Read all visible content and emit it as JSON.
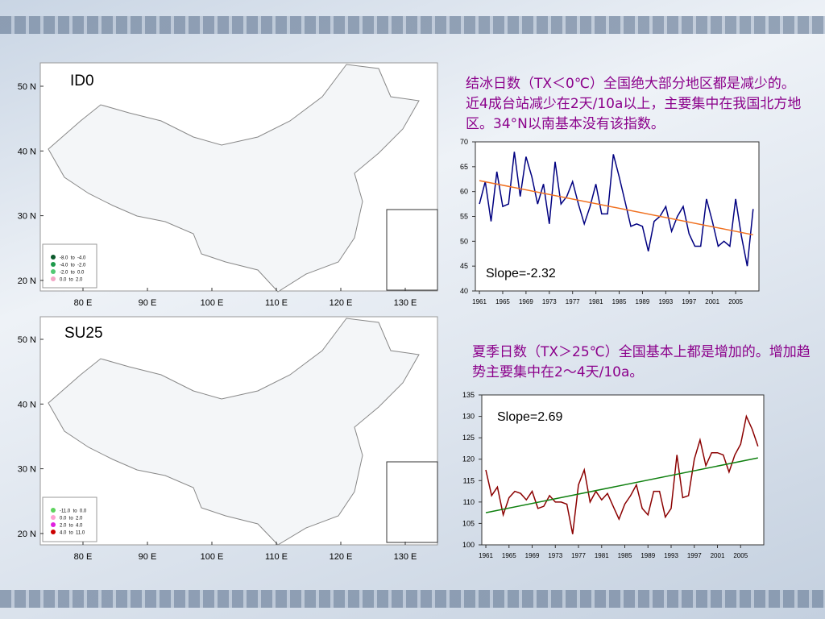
{
  "slide": {
    "text1": "结冰日数（TX＜0℃）全国绝大部分地区都是减少的。近4成台站减少在2天/10a以上，主要集中在我国北方地区。34°N以南基本没有该指数。",
    "text2": "夏季日数（TX＞25℃）全国基本上都是增加的。增加趋势主要集中在2～4天/10a。"
  },
  "maps": [
    {
      "label": "ID0",
      "lat_ticks": [
        {
          "value": 50,
          "label": "50 N"
        },
        {
          "value": 40,
          "label": "40 N"
        },
        {
          "value": 30,
          "label": "30 N"
        },
        {
          "value": 20,
          "label": "20 N"
        }
      ],
      "lon_ticks": [
        {
          "value": 80,
          "label": "80 E"
        },
        {
          "value": 90,
          "label": "90 E"
        },
        {
          "value": 100,
          "label": "100 E"
        },
        {
          "value": 110,
          "label": "110 E"
        },
        {
          "value": 120,
          "label": "120 E"
        },
        {
          "value": 130,
          "label": "130 E"
        }
      ],
      "legend": [
        {
          "label": "-8.0  to  -4.0",
          "color": "#0b5a2c"
        },
        {
          "label": "-4.0  to  -2.0",
          "color": "#1e9a4c"
        },
        {
          "label": "-2.0  to  0.0",
          "color": "#52c974"
        },
        {
          "label": "0.0  to  2.0",
          "color": "#f2a6c6"
        }
      ]
    },
    {
      "label": "SU25",
      "lat_ticks": [
        {
          "value": 50,
          "label": "50 N"
        },
        {
          "value": 40,
          "label": "40 N"
        },
        {
          "value": 30,
          "label": "30 N"
        },
        {
          "value": 20,
          "label": "20 N"
        }
      ],
      "lon_ticks": [
        {
          "value": 80,
          "label": "80 E"
        },
        {
          "value": 90,
          "label": "90 E"
        },
        {
          "value": 100,
          "label": "100 E"
        },
        {
          "value": 110,
          "label": "110 E"
        },
        {
          "value": 120,
          "label": "120 E"
        },
        {
          "value": 130,
          "label": "130 E"
        }
      ],
      "legend": [
        {
          "label": "-11.0  to  0.0",
          "color": "#5ed35e"
        },
        {
          "label": "0.0  to  2.0",
          "color": "#ffa0d2"
        },
        {
          "label": "2.0  to  4.0",
          "color": "#e020e0"
        },
        {
          "label": "4.0  to  11.0",
          "color": "#cc0000"
        }
      ]
    }
  ],
  "chart_data": [
    {
      "type": "line",
      "x": [
        1961,
        1962,
        1963,
        1964,
        1965,
        1966,
        1967,
        1968,
        1969,
        1970,
        1971,
        1972,
        1973,
        1974,
        1975,
        1976,
        1977,
        1978,
        1979,
        1980,
        1981,
        1982,
        1983,
        1984,
        1985,
        1986,
        1987,
        1988,
        1989,
        1990,
        1991,
        1992,
        1993,
        1994,
        1995,
        1996,
        1997,
        1998,
        1999,
        2000,
        2001,
        2002,
        2003,
        2004,
        2005,
        2006,
        2007,
        2008
      ],
      "series": [
        {
          "color": "#000080",
          "values": [
            57.5,
            62,
            54,
            64,
            57,
            57.5,
            68,
            59,
            67,
            63,
            57.5,
            61.5,
            53.5,
            66,
            57.5,
            59,
            62,
            57.5,
            53.5,
            57,
            61.5,
            55.5,
            55.5,
            67.5,
            63,
            58,
            53,
            53.5,
            53,
            48,
            54,
            55,
            57,
            52,
            55,
            57,
            51.5,
            49,
            49,
            58.5,
            54,
            49,
            50,
            49,
            58.5,
            51,
            45,
            56.5
          ]
        }
      ],
      "trend": {
        "color": "#f07020",
        "x": [
          1961,
          2008
        ],
        "values": [
          62.2,
          51.3
        ]
      },
      "annotation": "Slope=-2.32",
      "xlim": [
        1960.3,
        2009
      ],
      "ylim": [
        40,
        70
      ],
      "xticks": [
        1961,
        1965,
        1969,
        1973,
        1977,
        1981,
        1985,
        1989,
        1993,
        1997,
        2001,
        2005
      ],
      "yticks": [
        40,
        45,
        50,
        55,
        60,
        65,
        70
      ]
    },
    {
      "type": "line",
      "x": [
        1961,
        1962,
        1963,
        1964,
        1965,
        1966,
        1967,
        1968,
        1969,
        1970,
        1971,
        1972,
        1973,
        1974,
        1975,
        1976,
        1977,
        1978,
        1979,
        1980,
        1981,
        1982,
        1983,
        1984,
        1985,
        1986,
        1987,
        1988,
        1989,
        1990,
        1991,
        1992,
        1993,
        1994,
        1995,
        1996,
        1997,
        1998,
        1999,
        2000,
        2001,
        2002,
        2003,
        2004,
        2005,
        2006,
        2007,
        2008
      ],
      "series": [
        {
          "color": "#8b0000",
          "values": [
            117.5,
            111.5,
            113.5,
            107,
            111,
            112.5,
            112,
            110.5,
            112.5,
            108.5,
            109,
            111.5,
            110,
            110,
            109.5,
            102.5,
            114,
            117.5,
            110,
            112.5,
            110.5,
            112,
            109,
            106,
            109.5,
            111.5,
            114,
            108.5,
            107,
            112.5,
            112.5,
            106.5,
            108.5,
            121,
            111,
            111.5,
            120,
            124.5,
            118.5,
            121.5,
            121.5,
            121,
            117,
            121,
            123.5,
            130,
            127,
            123
          ]
        }
      ],
      "trend": {
        "color": "#108010",
        "x": [
          1961,
          2008
        ],
        "values": [
          107.5,
          120.3
        ]
      },
      "annotation": "Slope=2.69",
      "xlim": [
        1960.3,
        2009
      ],
      "ylim": [
        100,
        135
      ],
      "xticks": [
        1961,
        1965,
        1969,
        1973,
        1977,
        1981,
        1985,
        1989,
        1993,
        1997,
        2001,
        2005
      ],
      "yticks": [
        100,
        105,
        110,
        115,
        120,
        125,
        130,
        135
      ]
    }
  ]
}
